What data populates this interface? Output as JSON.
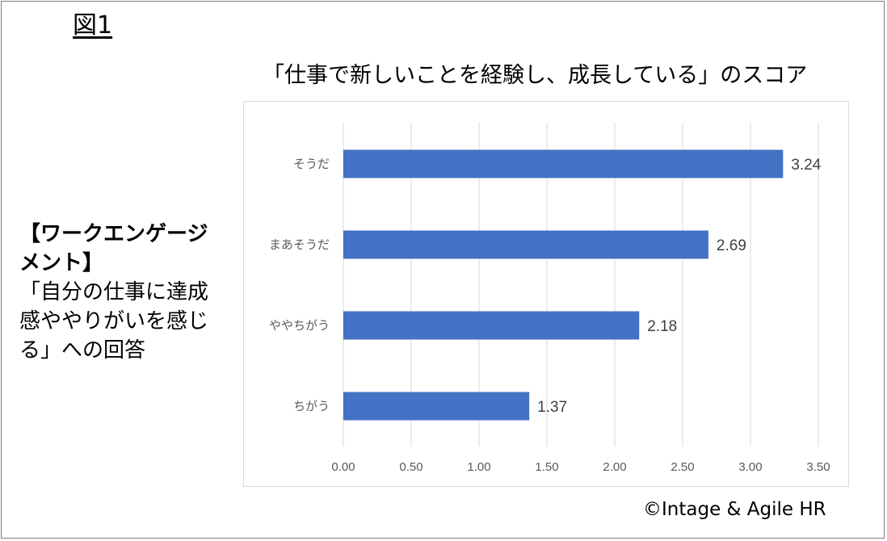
{
  "figure_label": "図1",
  "side_text": {
    "bold": "【ワークエンゲージメント】",
    "normal": "「自分の仕事に達成感ややりがいを感じる」への回答"
  },
  "copyright": "©Intage & Agile HR",
  "colors": {
    "bar": "#4472c4",
    "grid": "#d9d9d9",
    "tick_text": "#595959",
    "value_text": "#404040"
  },
  "chart_data": {
    "type": "bar",
    "orientation": "horizontal",
    "title": "「仕事で新しいことを経験し、成長している」のスコア",
    "categories": [
      "そうだ",
      "まあそうだ",
      "ややちがう",
      "ちがう"
    ],
    "values": [
      3.24,
      2.69,
      2.18,
      1.37
    ],
    "value_labels": [
      "3.24",
      "2.69",
      "2.18",
      "1.37"
    ],
    "xlim": [
      0,
      3.5
    ],
    "xticks": [
      0,
      0.5,
      1.0,
      1.5,
      2.0,
      2.5,
      3.0,
      3.5
    ],
    "xtick_labels": [
      "0.00",
      "0.50",
      "1.00",
      "1.50",
      "2.00",
      "2.50",
      "3.00",
      "3.50"
    ],
    "grid": "vertical",
    "legend": "none"
  }
}
